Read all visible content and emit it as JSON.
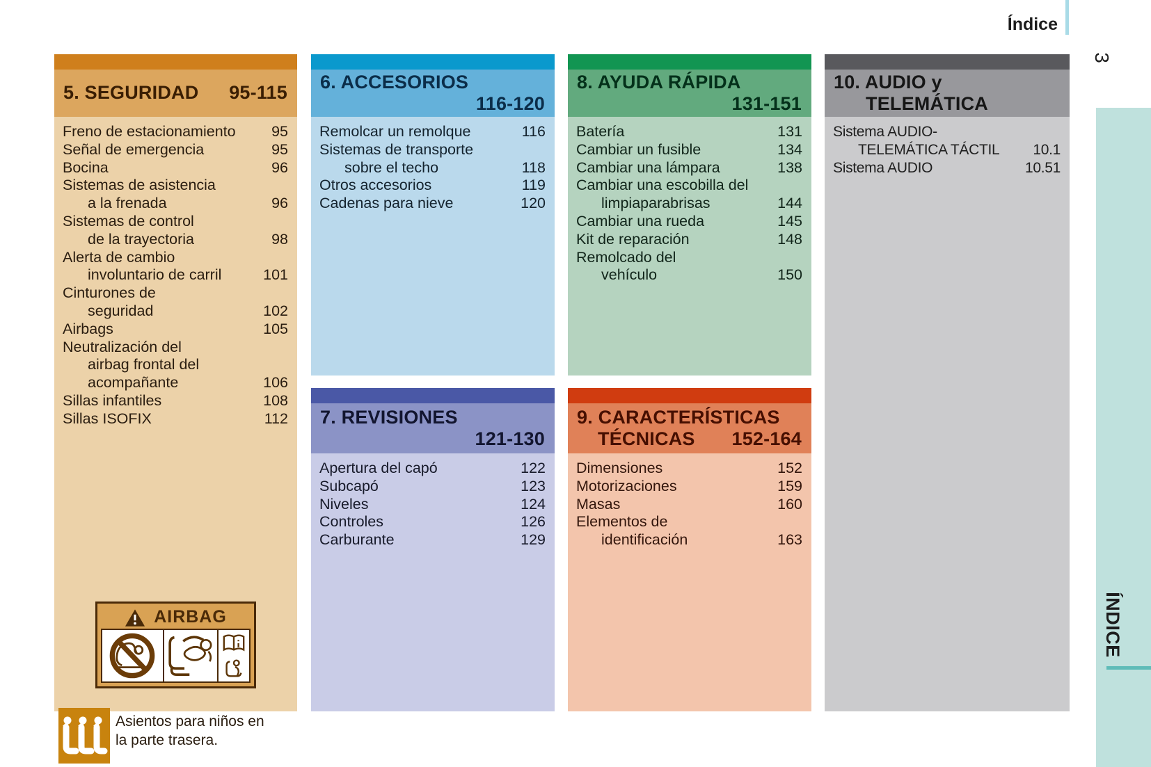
{
  "page": {
    "header_label": "Índice",
    "page_number": "3",
    "side_tab_label": "ÍNDICE",
    "colors": {
      "tick": "#a9dbe7",
      "sidebar": "#bfe1dd",
      "sidebar-line": "#5fbcb8"
    }
  },
  "sections": {
    "seguridad": {
      "title": "5. SEGURIDAD",
      "range": "95-115",
      "colors": {
        "bar": "#cf7f1c",
        "head": "#dca65e",
        "body": "#ecd2a9",
        "title": "#3a1e03",
        "text": "#2a1d10",
        "al-bg": "#d9a254",
        "al-ink": "#4a2a08",
        "cs-bg": "#c8830e"
      },
      "items": [
        {
          "lines": [
            "Freno de estacionamiento"
          ],
          "page": "95"
        },
        {
          "lines": [
            "Señal de emergencia"
          ],
          "page": "95"
        },
        {
          "lines": [
            "Bocina"
          ],
          "page": "96"
        },
        {
          "lines": [
            "Sistemas de asistencia",
            "a la frenada"
          ],
          "page": "96"
        },
        {
          "lines": [
            "Sistemas de control",
            "de la trayectoria"
          ],
          "page": "98"
        },
        {
          "lines": [
            "Alerta de cambio",
            "involuntario de carril"
          ],
          "page": "101"
        },
        {
          "lines": [
            "Cinturones de",
            "seguridad"
          ],
          "page": "102"
        },
        {
          "lines": [
            "Airbags"
          ],
          "page": "105"
        },
        {
          "lines": [
            "Neutralización del",
            "airbag frontal del",
            "acompañante"
          ],
          "page": "106"
        },
        {
          "lines": [
            "Sillas infantiles"
          ],
          "page": "108"
        },
        {
          "lines": [
            "Sillas ISOFIX"
          ],
          "page": "112"
        }
      ],
      "airbag_label_title": "AIRBAG",
      "note_line1": "Asientos para niños en",
      "note_line2": "la parte trasera."
    },
    "accesorios": {
      "title": "6. ACCESORIOS",
      "range": "116-120",
      "colors": {
        "bar": "#0a99cd",
        "head": "#64b1da",
        "body": "#bad9ec",
        "title": "#0b2d49",
        "text": "#14232e"
      },
      "items": [
        {
          "lines": [
            "Remolcar un remolque"
          ],
          "page": "116"
        },
        {
          "lines": [
            "Sistemas de transporte",
            "sobre el techo"
          ],
          "page": "118"
        },
        {
          "lines": [
            "Otros accesorios"
          ],
          "page": "119"
        },
        {
          "lines": [
            "Cadenas para nieve"
          ],
          "page": "120"
        }
      ]
    },
    "revisiones": {
      "title": "7. REVISIONES",
      "range": "121-130",
      "colors": {
        "bar": "#4a58a6",
        "head": "#8b93c6",
        "body": "#c9cce7",
        "title": "#12152f",
        "text": "#181b2b"
      },
      "items": [
        {
          "lines": [
            "Apertura del capó"
          ],
          "page": "122"
        },
        {
          "lines": [
            "Subcapó"
          ],
          "page": "123"
        },
        {
          "lines": [
            "Niveles"
          ],
          "page": "124"
        },
        {
          "lines": [
            "Controles"
          ],
          "page": "126"
        },
        {
          "lines": [
            "Carburante"
          ],
          "page": "129"
        }
      ]
    },
    "ayuda": {
      "title": "8. AYUDA RÁPIDA",
      "range": "131-151",
      "colors": {
        "bar": "#129552",
        "head": "#62aa7e",
        "body": "#b5d3bf",
        "title": "#04301a",
        "text": "#11251a"
      },
      "items": [
        {
          "lines": [
            "Batería"
          ],
          "page": "131"
        },
        {
          "lines": [
            "Cambiar un fusible"
          ],
          "page": "134"
        },
        {
          "lines": [
            "Cambiar una lámpara"
          ],
          "page": "138"
        },
        {
          "lines": [
            "Cambiar una escobilla del",
            "limpiaparabrisas"
          ],
          "page": "144"
        },
        {
          "lines": [
            "Cambiar una rueda"
          ],
          "page": "145"
        },
        {
          "lines": [
            "Kit de reparación"
          ],
          "page": "148"
        },
        {
          "lines": [
            "Remolcado del",
            "vehículo"
          ],
          "page": "150"
        }
      ]
    },
    "caracteristicas": {
      "title_line1": "9. CARACTERÍSTICAS",
      "title_line2": "TÉCNICAS",
      "range": "152-164",
      "colors": {
        "bar": "#d03c10",
        "head": "#e08158",
        "body": "#f3c5ac",
        "title": "#460f00",
        "text": "#33160c"
      },
      "items": [
        {
          "lines": [
            "Dimensiones"
          ],
          "page": "152"
        },
        {
          "lines": [
            "Motorizaciones"
          ],
          "page": "159"
        },
        {
          "lines": [
            "Masas"
          ],
          "page": "160"
        },
        {
          "lines": [
            "Elementos de",
            "identificación"
          ],
          "page": "163"
        }
      ]
    },
    "audio": {
      "title_line1": "10. AUDIO y",
      "title_line2": "TELEMÁTICA",
      "colors": {
        "bar": "#59595d",
        "head": "#98989c",
        "body": "#cbcbcd",
        "title": "#161616",
        "text": "#1f1f1f"
      },
      "items": [
        {
          "lines": [
            "Sistema AUDIO-",
            "TELEMÁTICA TÁCTIL"
          ],
          "page": "10.1"
        },
        {
          "lines": [
            "Sistema AUDIO"
          ],
          "page": "10.51"
        }
      ]
    }
  }
}
